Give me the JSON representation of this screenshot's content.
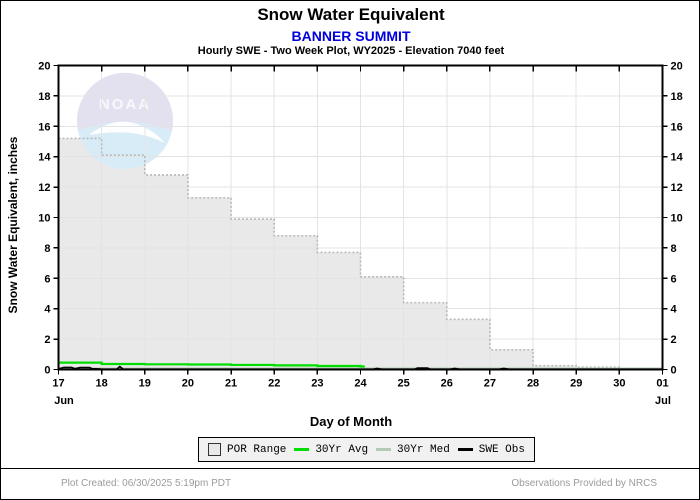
{
  "header": {
    "title": "Snow Water Equivalent",
    "station": "BANNER SUMMIT",
    "station_color": "#0000dd",
    "subtitle": "Hourly SWE - Two Week Plot, WY2025 -  Elevation 7040 feet"
  },
  "axes": {
    "y_label": "Snow Water Equivalent, inches",
    "x_label": "Day of Month",
    "month_start": "Jun",
    "month_end": "Jul"
  },
  "watermark": {
    "text": "NOAA"
  },
  "legend": {
    "items": [
      {
        "label": "POR Range",
        "type": "area",
        "fill": "#e9e9e9",
        "border": "#333333"
      },
      {
        "label": "30Yr Avg",
        "type": "line",
        "color": "#00dd00"
      },
      {
        "label": "30Yr Med",
        "type": "line",
        "color": "#b3cab3"
      },
      {
        "label": "SWE Obs",
        "type": "line",
        "color": "#000000"
      }
    ]
  },
  "footer": {
    "left": "Plot Created: 06/30/2025 5:19pm PDT",
    "right": "Observations Provided by NRCS"
  },
  "chart_data": {
    "type": "area",
    "title": "Snow Water Equivalent",
    "xlabel": "Day of Month",
    "ylabel": "Snow Water Equivalent, inches",
    "xlim": [
      17,
      31
    ],
    "ylim": [
      0,
      20
    ],
    "grid": true,
    "legend_position": "bottom",
    "x_tick_labels": [
      "17",
      "18",
      "19",
      "20",
      "21",
      "22",
      "23",
      "24",
      "25",
      "26",
      "27",
      "28",
      "29",
      "30",
      "01"
    ],
    "y_ticks": [
      0,
      2,
      4,
      6,
      8,
      10,
      12,
      14,
      16,
      18,
      20
    ],
    "series": [
      {
        "name": "POR Range",
        "type": "step-area",
        "fill": "#e9e9e9",
        "outline": "#b9b9b9",
        "days": [
          17,
          18,
          19,
          20,
          21,
          22,
          23,
          24,
          25,
          26,
          27,
          28,
          29,
          30
        ],
        "values": [
          15.2,
          14.1,
          12.8,
          11.3,
          9.9,
          8.8,
          7.7,
          6.1,
          4.4,
          3.3,
          1.3,
          0.25,
          0.15,
          0.05
        ]
      },
      {
        "name": "30Yr Avg",
        "type": "step-line",
        "color": "#00dd00",
        "days": [
          17,
          18,
          19,
          20,
          21,
          22,
          23,
          24
        ],
        "values": [
          0.45,
          0.36,
          0.34,
          0.33,
          0.3,
          0.27,
          0.23,
          0.2
        ],
        "end_day": 24.1
      },
      {
        "name": "30Yr Med",
        "type": "line",
        "color": "#b3cab3",
        "value": 0.0
      },
      {
        "name": "SWE Obs",
        "type": "polyline",
        "color": "#000000",
        "points": [
          [
            17.0,
            0.03
          ],
          [
            17.12,
            0.14
          ],
          [
            17.3,
            0.14
          ],
          [
            17.38,
            0.06
          ],
          [
            17.5,
            0.13
          ],
          [
            17.72,
            0.13
          ],
          [
            17.78,
            0.05
          ],
          [
            17.95,
            0.04
          ],
          [
            18.0,
            0.02
          ],
          [
            18.35,
            0.02
          ],
          [
            18.42,
            0.2
          ],
          [
            18.5,
            0.02
          ],
          [
            19.0,
            0.02
          ],
          [
            24.3,
            0.02
          ],
          [
            24.38,
            0.07
          ],
          [
            24.5,
            0.02
          ],
          [
            25.25,
            0.02
          ],
          [
            25.32,
            0.09
          ],
          [
            25.55,
            0.09
          ],
          [
            25.62,
            0.02
          ],
          [
            26.08,
            0.02
          ],
          [
            26.18,
            0.07
          ],
          [
            26.3,
            0.02
          ],
          [
            27.22,
            0.02
          ],
          [
            27.32,
            0.07
          ],
          [
            27.45,
            0.02
          ],
          [
            31.0,
            0.02
          ]
        ]
      }
    ]
  }
}
